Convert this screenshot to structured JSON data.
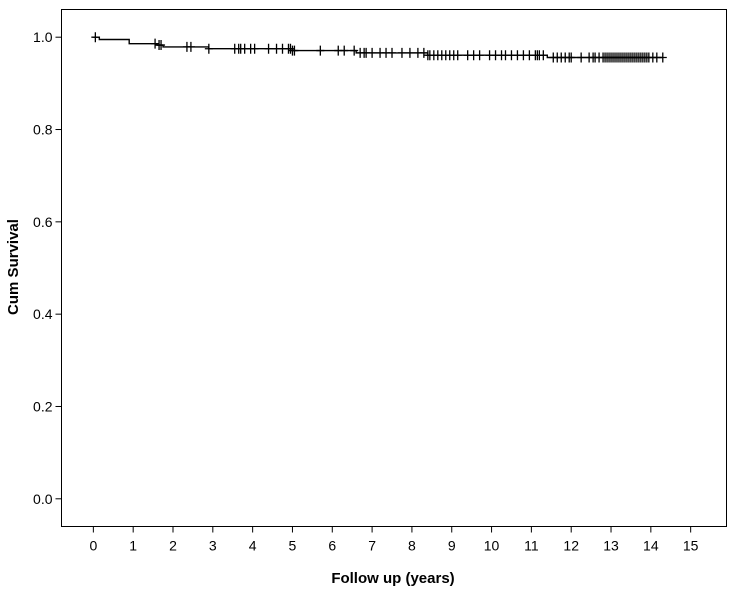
{
  "chart_data": {
    "type": "line",
    "subtype": "kaplan-meier",
    "title": "",
    "xlabel": "Follow up (years)",
    "ylabel": "Cum Survival",
    "xlim": [
      -0.8,
      15.9
    ],
    "ylim": [
      -0.06,
      1.06
    ],
    "xticks": [
      "0",
      "1",
      "2",
      "3",
      "4",
      "5",
      "6",
      "7",
      "8",
      "9",
      "10",
      "11",
      "12",
      "13",
      "14",
      "15"
    ],
    "yticks": [
      "0.0",
      "0.2",
      "0.4",
      "0.6",
      "0.8",
      "1.0"
    ],
    "grid": false,
    "legend": "none",
    "series": [
      {
        "step_x": [
          0,
          0.15,
          0.9,
          1.6,
          1.75,
          2.9,
          5.0,
          6.6,
          8.4,
          11.4,
          14.3
        ],
        "step_y": [
          1.0,
          0.995,
          0.986,
          0.983,
          0.979,
          0.975,
          0.971,
          0.966,
          0.961,
          0.956,
          0.956
        ],
        "censor_x": [
          0.05,
          1.55,
          1.65,
          1.7,
          2.35,
          2.45,
          2.9,
          3.55,
          3.65,
          3.7,
          3.8,
          3.95,
          4.05,
          4.4,
          4.6,
          4.75,
          4.9,
          4.95,
          5.0,
          5.05,
          5.7,
          6.15,
          6.3,
          6.55,
          6.7,
          6.8,
          6.85,
          7.0,
          7.2,
          7.35,
          7.5,
          7.75,
          7.95,
          8.15,
          8.3,
          8.4,
          8.45,
          8.55,
          8.65,
          8.75,
          8.85,
          8.95,
          9.05,
          9.15,
          9.4,
          9.55,
          9.7,
          9.95,
          10.1,
          10.25,
          10.35,
          10.5,
          10.65,
          10.8,
          10.95,
          11.1,
          11.15,
          11.2,
          11.3,
          11.55,
          11.65,
          11.75,
          11.85,
          11.95,
          12.0,
          12.25,
          12.45,
          12.55,
          12.6,
          12.7,
          12.8,
          12.85,
          12.9,
          12.95,
          13.0,
          13.05,
          13.1,
          13.15,
          13.2,
          13.25,
          13.3,
          13.35,
          13.4,
          13.45,
          13.5,
          13.55,
          13.6,
          13.65,
          13.7,
          13.75,
          13.8,
          13.85,
          13.9,
          13.95,
          14.05,
          14.15,
          14.3
        ]
      }
    ]
  }
}
